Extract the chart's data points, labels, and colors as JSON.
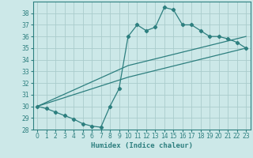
{
  "xlabel": "Humidex (Indice chaleur)",
  "background_color": "#cce8e8",
  "grid_color": "#aacccc",
  "line_color": "#2d7f7f",
  "xlim": [
    -0.5,
    23.5
  ],
  "ylim": [
    28,
    39
  ],
  "yticks": [
    28,
    29,
    30,
    31,
    32,
    33,
    34,
    35,
    36,
    37,
    38
  ],
  "xticks": [
    0,
    1,
    2,
    3,
    4,
    5,
    6,
    7,
    8,
    9,
    10,
    11,
    12,
    13,
    14,
    15,
    16,
    17,
    18,
    19,
    20,
    21,
    22,
    23
  ],
  "line1_x": [
    0,
    1,
    2,
    3,
    4,
    5,
    6,
    7,
    8,
    9,
    10,
    11,
    12,
    13,
    14,
    15,
    16,
    17,
    18,
    19,
    20,
    21,
    22,
    23
  ],
  "line1_y": [
    30.0,
    29.8,
    29.5,
    29.2,
    28.9,
    28.5,
    28.3,
    28.2,
    30.0,
    31.5,
    36.0,
    37.0,
    36.5,
    36.8,
    38.5,
    38.3,
    37.0,
    37.0,
    36.5,
    36.0,
    36.0,
    35.8,
    35.5,
    35.0
  ],
  "line2_x": [
    0,
    10,
    23
  ],
  "line2_y": [
    30.0,
    33.5,
    36.0
  ],
  "line3_x": [
    0,
    10,
    23
  ],
  "line3_y": [
    30.0,
    32.5,
    35.0
  ]
}
